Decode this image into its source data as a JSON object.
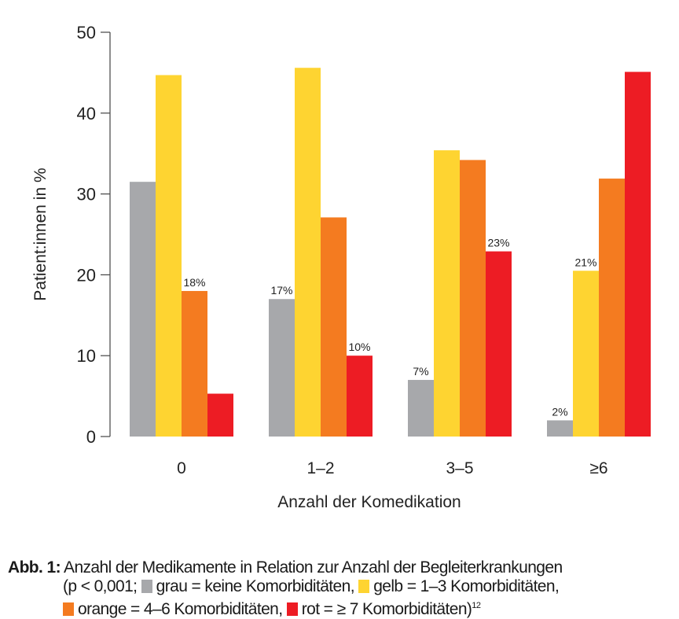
{
  "chart_data": {
    "type": "bar",
    "title": "",
    "xlabel": "Anzahl der Komedikation",
    "ylabel": "Patient:innen in %",
    "ylim": [
      0,
      50
    ],
    "yticks": [
      0,
      10,
      20,
      30,
      40,
      50
    ],
    "grid": false,
    "categories": [
      "0",
      "1–2",
      "3–5",
      "≥6"
    ],
    "series": [
      {
        "key": "grau",
        "color": "#a7a8ab",
        "values": [
          31.5,
          17,
          7,
          2
        ],
        "labels": [
          "",
          "17%",
          "7%",
          "2%"
        ]
      },
      {
        "key": "gelb",
        "color": "#fed431",
        "values": [
          44.7,
          45.6,
          35.4,
          20.5
        ],
        "labels": [
          "",
          "",
          "",
          "21%"
        ]
      },
      {
        "key": "orange",
        "color": "#f47b20",
        "values": [
          18,
          27.1,
          34.2,
          31.9
        ],
        "labels": [
          "18%",
          "",
          "",
          ""
        ]
      },
      {
        "key": "rot",
        "color": "#ed1c24",
        "values": [
          5.3,
          10,
          22.9,
          45.1
        ],
        "labels": [
          "",
          "10%",
          "23%",
          ""
        ]
      }
    ]
  },
  "caption": {
    "label": "Abb. 1:",
    "line1": "Anzahl der Medikamente in Relation zur Anzahl der Begleiterkrankungen",
    "line2_prefix": "(p < 0,001;",
    "legend": [
      {
        "text": "grau = keine Komorbiditäten,",
        "color": "#a7a8ab"
      },
      {
        "text": "gelb = 1–3 Komorbiditäten,",
        "color": "#fed431"
      },
      {
        "text": "orange = 4–6 Komorbiditäten,",
        "color": "#f47b20"
      },
      {
        "text": "rot = ≥ 7 Komorbiditäten)",
        "color": "#ed1c24"
      }
    ],
    "reference": "12"
  }
}
